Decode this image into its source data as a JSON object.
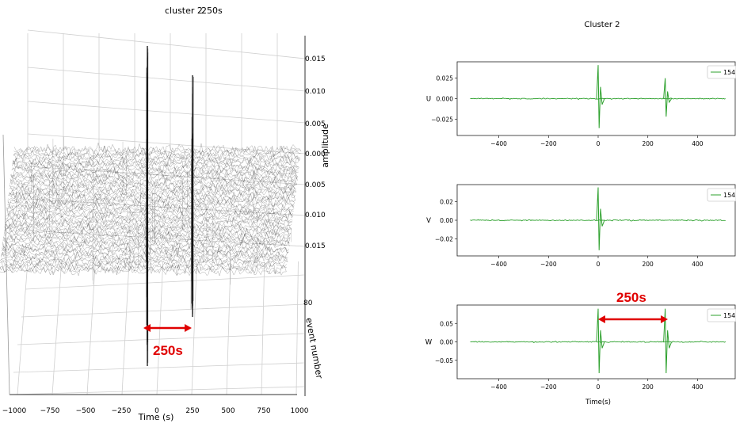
{
  "chart_data": [
    {
      "type": "line",
      "title": "cluster 2",
      "subtitle": "250s",
      "xlabel": "Time (s)",
      "zlabel": "amplitude",
      "ylabel": "event number",
      "x_ticks": [
        "−1000",
        "−750",
        "−500",
        "−250",
        "0",
        "250",
        "500",
        "750",
        "1000"
      ],
      "xlim": [
        -1000,
        1000
      ],
      "z_ticks": [
        "0.015",
        "0.010",
        "0.005",
        "0.000",
        "0.005",
        "0.010",
        "0.015"
      ],
      "y_ticks": [
        "80"
      ],
      "annotation": "250s",
      "spike_times": [
        -50,
        250
      ],
      "grid": true
    },
    {
      "type": "line",
      "title": "Cluster 2",
      "xlabel": "Time(s)",
      "xlim": [
        -520,
        520
      ],
      "x_ticks": [
        "−400",
        "−200",
        "0",
        "200",
        "400"
      ],
      "annotation": "250s",
      "subplots": [
        {
          "ylabel": "U",
          "y_ticks": [
            "0.025",
            "0.000",
            "−0.025"
          ],
          "ylim": [
            -0.045,
            0.045
          ],
          "legend": "154",
          "spikes": [
            {
              "t": 0,
              "peak": 0.041,
              "trough": -0.036
            },
            {
              "t": 270,
              "peak": 0.025,
              "trough": -0.022
            }
          ]
        },
        {
          "ylabel": "V",
          "y_ticks": [
            "0.02",
            "0.00",
            "−0.02"
          ],
          "ylim": [
            -0.038,
            0.038
          ],
          "legend": "154",
          "spikes": [
            {
              "t": 0,
              "peak": 0.035,
              "trough": -0.032
            }
          ]
        },
        {
          "ylabel": "W",
          "y_ticks": [
            "0.05",
            "0.00",
            "−0.05"
          ],
          "ylim": [
            -0.1,
            0.1
          ],
          "legend": "154",
          "spikes": [
            {
              "t": 0,
              "peak": 0.09,
              "trough": -0.085
            },
            {
              "t": 270,
              "peak": 0.09,
              "trough": -0.085
            }
          ]
        }
      ]
    }
  ],
  "colors": {
    "trace": "#2ca02c",
    "noise": "#111111",
    "annotation": "#e00000"
  }
}
